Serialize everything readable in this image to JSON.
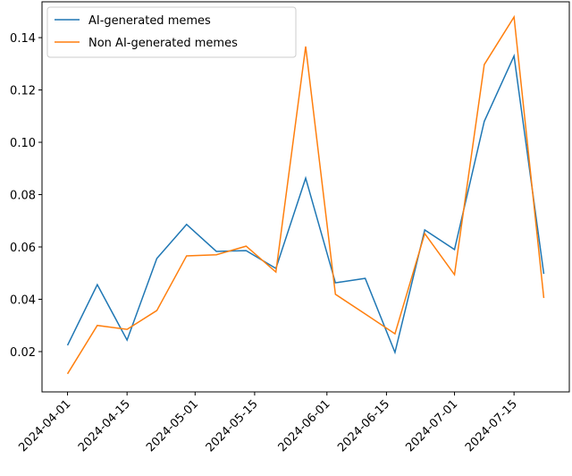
{
  "chart_data": {
    "type": "line",
    "x": [
      "2024-04-01",
      "2024-04-08",
      "2024-04-15",
      "2024-04-22",
      "2024-04-29",
      "2024-05-06",
      "2024-05-13",
      "2024-05-20",
      "2024-05-27",
      "2024-06-03",
      "2024-06-10",
      "2024-06-17",
      "2024-06-24",
      "2024-07-01",
      "2024-07-08",
      "2024-07-15",
      "2024-07-22"
    ],
    "series": [
      {
        "name": "AI-generated memes",
        "color": "#1f77b4",
        "values": [
          0.0224,
          0.0456,
          0.0244,
          0.0556,
          0.0686,
          0.0583,
          0.0586,
          0.0518,
          0.0863,
          0.0463,
          0.048,
          0.0197,
          0.0665,
          0.059,
          0.108,
          0.133,
          0.0497
        ]
      },
      {
        "name": "Non AI-generated memes",
        "color": "#ff7f0e",
        "values": [
          0.0115,
          0.03,
          0.0285,
          0.0357,
          0.0566,
          0.057,
          0.0603,
          0.0504,
          0.1366,
          0.0419,
          0.0344,
          0.0268,
          0.0651,
          0.0494,
          0.1297,
          0.1479,
          0.0405
        ]
      }
    ],
    "xlim": [
      "2024-03-26",
      "2024-07-28"
    ],
    "xticks": [
      "2024-04-01",
      "2024-04-15",
      "2024-05-01",
      "2024-05-15",
      "2024-06-01",
      "2024-06-15",
      "2024-07-01",
      "2024-07-15"
    ],
    "ylim": [
      0.0046,
      0.1537
    ],
    "yticks": [
      {
        "value": 0.02,
        "label": "0.02"
      },
      {
        "value": 0.04,
        "label": "0.04"
      },
      {
        "value": 0.06,
        "label": "0.06"
      },
      {
        "value": 0.08,
        "label": "0.08"
      },
      {
        "value": 0.1,
        "label": "0.10"
      },
      {
        "value": 0.12,
        "label": "0.12"
      },
      {
        "value": 0.14,
        "label": "0.14"
      }
    ],
    "legend": "upper left"
  }
}
